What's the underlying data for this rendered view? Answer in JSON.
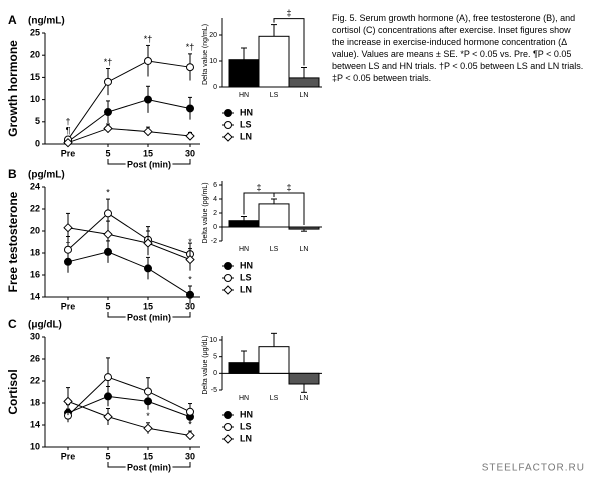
{
  "chart_data": [
    {
      "type": "line",
      "panel": "A",
      "ylabel": "Growth hormone",
      "unit": "(ng/mL)",
      "xlabel": "Post (min)",
      "categories": [
        "Pre",
        "5",
        "15",
        "30"
      ],
      "ylim": [
        0,
        25
      ],
      "yticks": [
        0,
        5,
        10,
        15,
        20,
        25
      ],
      "series": [
        {
          "name": "HN",
          "marker": "filled-circle",
          "color": "#000000",
          "values": [
            0.5,
            7.2,
            10,
            8
          ],
          "errors": [
            0.5,
            2.5,
            3,
            2.5
          ],
          "point_labels": [
            null,
            null,
            null,
            null
          ]
        },
        {
          "name": "LS",
          "marker": "open-circle",
          "color": "#000000",
          "values": [
            1,
            14,
            18.7,
            17.3
          ],
          "errors": [
            0.5,
            3,
            3.5,
            3
          ],
          "point_labels": [
            [
              "†",
              "¶"
            ],
            "*†",
            "*†",
            "*†"
          ]
        },
        {
          "name": "LN",
          "marker": "open-diamond",
          "color": "#000000",
          "values": [
            0.3,
            3.5,
            2.8,
            1.8
          ],
          "errors": [
            0.3,
            1,
            1,
            0.8
          ],
          "point_labels": [
            null,
            null,
            null,
            null
          ]
        }
      ]
    },
    {
      "type": "bar",
      "ylabel": "Delta value (ng/mL)",
      "categories": [
        "HN",
        "LS",
        "LN"
      ],
      "values": [
        10.5,
        19.5,
        3.5
      ],
      "errors": [
        4.5,
        4.5,
        4
      ],
      "colors": [
        "#000000",
        "#ffffff",
        "#555555"
      ],
      "ylim": [
        0,
        25
      ],
      "yticks": [
        0,
        10,
        20
      ],
      "brackets": [
        {
          "label": "‡",
          "from": 1,
          "to": 2
        }
      ]
    },
    {
      "type": "line",
      "panel": "B",
      "ylabel": "Free testosterone",
      "unit": "(pg/mL)",
      "xlabel": "Post (min)",
      "categories": [
        "Pre",
        "5",
        "15",
        "30"
      ],
      "ylim": [
        14,
        24
      ],
      "yticks": [
        14,
        16,
        18,
        20,
        22,
        24
      ],
      "series": [
        {
          "name": "HN",
          "marker": "filled-circle",
          "color": "#000000",
          "values": [
            17.2,
            18.1,
            16.6,
            14.2
          ],
          "errors": [
            1,
            1,
            1,
            0.8
          ],
          "point_labels": [
            "†",
            null,
            null,
            "*"
          ]
        },
        {
          "name": "LS",
          "marker": "open-circle",
          "color": "#000000",
          "values": [
            18.3,
            21.6,
            19.2,
            17.9
          ],
          "errors": [
            1.2,
            1.3,
            1.2,
            1
          ],
          "point_labels": [
            null,
            "*",
            null,
            null
          ]
        },
        {
          "name": "LN",
          "marker": "open-diamond",
          "color": "#000000",
          "values": [
            20.3,
            19.7,
            18.9,
            17.4
          ],
          "errors": [
            1.3,
            1.2,
            1.1,
            1
          ],
          "point_labels": [
            null,
            null,
            null,
            "*"
          ]
        }
      ]
    },
    {
      "type": "bar",
      "ylabel": "Delta value (pg/mL)",
      "categories": [
        "HN",
        "LS",
        "LN"
      ],
      "values": [
        0.9,
        3.3,
        -0.3
      ],
      "errors": [
        0.6,
        0.7,
        0.3
      ],
      "colors": [
        "#000000",
        "#ffffff",
        "#555555"
      ],
      "ylim": [
        -2,
        6
      ],
      "yticks": [
        -2,
        0,
        2,
        4,
        6
      ],
      "brackets": [
        {
          "label": "‡",
          "from": 0,
          "to": 1
        },
        {
          "label": "‡",
          "from": 1,
          "to": 2
        }
      ]
    },
    {
      "type": "line",
      "panel": "C",
      "ylabel": "Cortisol",
      "unit": "(μg/dL)",
      "xlabel": "Post (min)",
      "categories": [
        "Pre",
        "5",
        "15",
        "30"
      ],
      "ylim": [
        10,
        30
      ],
      "yticks": [
        10,
        14,
        18,
        22,
        26,
        30
      ],
      "series": [
        {
          "name": "HN",
          "marker": "filled-circle",
          "color": "#000000",
          "values": [
            16.2,
            19.2,
            18.3,
            15.5
          ],
          "errors": [
            1.5,
            1.8,
            1.5,
            1.2
          ],
          "point_labels": [
            null,
            null,
            null,
            null
          ]
        },
        {
          "name": "LS",
          "marker": "open-circle",
          "color": "#000000",
          "values": [
            15.7,
            22.7,
            20.1,
            16.4
          ],
          "errors": [
            1.2,
            3.5,
            2.5,
            1.5
          ],
          "point_labels": [
            null,
            null,
            null,
            null
          ]
        },
        {
          "name": "LN",
          "marker": "open-diamond",
          "color": "#000000",
          "values": [
            18.3,
            15.5,
            13.4,
            12.1
          ],
          "errors": [
            2.5,
            1.5,
            1,
            0.8
          ],
          "point_labels": [
            null,
            null,
            "*",
            "*"
          ]
        }
      ]
    },
    {
      "type": "bar",
      "ylabel": "Delta value (μg/dL)",
      "categories": [
        "HN",
        "LS",
        "LN"
      ],
      "values": [
        3.2,
        8,
        -3.2
      ],
      "errors": [
        3.5,
        4,
        2.5
      ],
      "colors": [
        "#000000",
        "#ffffff",
        "#555555"
      ],
      "ylim": [
        -5,
        10
      ],
      "yticks": [
        -5,
        0,
        5,
        10
      ],
      "brackets": []
    }
  ],
  "caption": "Fig. 5. Serum growth hormone (A), free testosterone (B), and cortisol (C) concentrations after exercise. Inset figures show the increase in exercise-induced hormone concentration (Δ value). Values are means ± SE. *P < 0.05 vs. Pre. ¶P < 0.05 between LS and HN trials. †P < 0.05 between LS and LN trials. ‡P < 0.05 between trials.",
  "watermark": "STEELFACTOR.RU"
}
